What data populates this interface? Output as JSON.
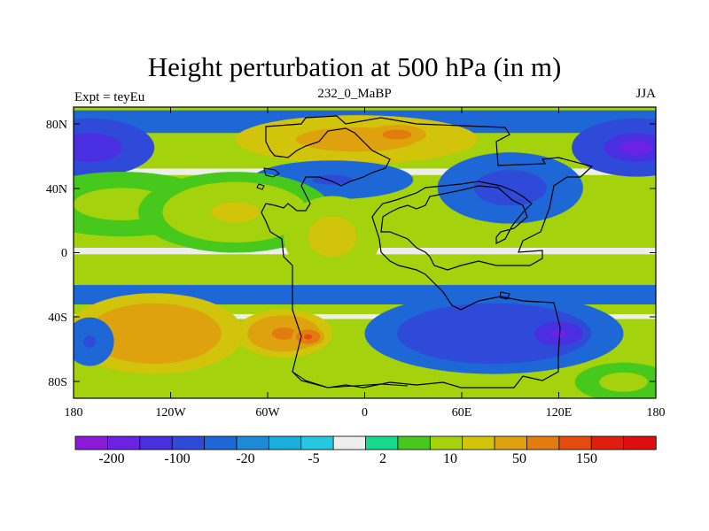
{
  "plot": {
    "title": "Height perturbation at 500 hPa (in m)",
    "left_string": "Expt = teyEu",
    "center_string": "232_0_MaBP",
    "right_string": "JJA"
  },
  "axes": {
    "lon_ticks": [
      "180",
      "120W",
      "60W",
      "0",
      "60E",
      "120E",
      "180"
    ],
    "lat_ticks": [
      "80N",
      "40N",
      "0",
      "40S",
      "80S"
    ]
  },
  "colorbar": {
    "colors": [
      "#8b1ad8",
      "#6b22e4",
      "#4a2fe0",
      "#2f4ad8",
      "#1e67d6",
      "#1d8ad8",
      "#1aaedb",
      "#25c8e0",
      "#eeeeee",
      "#16d98a",
      "#47c81c",
      "#a4d20c",
      "#d2c40a",
      "#dea20e",
      "#e27c0f",
      "#e34c0e",
      "#e01e0e",
      "#de0e10"
    ],
    "labels": [
      "-200",
      "-100",
      "-20",
      "-5",
      "2",
      "10",
      "50",
      "150"
    ]
  },
  "chart_data": {
    "type": "heatmap",
    "title": "Height perturbation at 500 hPa (in m)",
    "variable": "Height perturbation at 500 hPa",
    "units": "m",
    "experiment": "teyEu",
    "time": "232_0_MaBP",
    "season": "JJA",
    "xlabel": "",
    "ylabel": "",
    "xlim": [
      -180,
      180
    ],
    "ylim": [
      -90,
      90
    ],
    "x_ticks": [
      -180,
      -120,
      -60,
      0,
      60,
      120,
      180
    ],
    "y_ticks": [
      80,
      40,
      0,
      -40,
      -80
    ],
    "contour_levels": [
      -200,
      -150,
      -100,
      -50,
      -20,
      -10,
      -5,
      -2,
      2,
      5,
      10,
      20,
      50,
      100,
      150,
      200
    ],
    "features": [
      {
        "lon": -170,
        "lat": 65,
        "value": -150,
        "rx": 40,
        "ry": 18
      },
      {
        "lon": 168,
        "lat": 65,
        "value": -160,
        "rx": 40,
        "ry": 18
      },
      {
        "lon": -5,
        "lat": 70,
        "value": 70,
        "rx": 75,
        "ry": 15
      },
      {
        "lon": 20,
        "lat": 73,
        "value": 130,
        "rx": 18,
        "ry": 6
      },
      {
        "lon": -20,
        "lat": 45,
        "value": -60,
        "rx": 50,
        "ry": 12
      },
      {
        "lon": 90,
        "lat": 40,
        "value": -70,
        "rx": 45,
        "ry": 22
      },
      {
        "lon": -150,
        "lat": 30,
        "value": 15,
        "rx": 60,
        "ry": 20
      },
      {
        "lon": -80,
        "lat": 25,
        "value": 20,
        "rx": 60,
        "ry": 25
      },
      {
        "lon": -20,
        "lat": 10,
        "value": 25,
        "rx": 30,
        "ry": 25
      },
      {
        "lon": -130,
        "lat": -50,
        "value": 80,
        "rx": 55,
        "ry": 25
      },
      {
        "lon": -50,
        "lat": -50,
        "value": 100,
        "rx": 30,
        "ry": 15
      },
      {
        "lon": -35,
        "lat": -52,
        "value": 160,
        "rx": 10,
        "ry": 6
      },
      {
        "lon": 80,
        "lat": -50,
        "value": -100,
        "rx": 80,
        "ry": 25
      },
      {
        "lon": 120,
        "lat": -50,
        "value": -180,
        "rx": 20,
        "ry": 10
      },
      {
        "lon": -170,
        "lat": -55,
        "value": -60,
        "rx": 15,
        "ry": 15
      },
      {
        "lon": 160,
        "lat": -80,
        "value": 15,
        "rx": 30,
        "ry": 12
      }
    ],
    "colorbar_labels": [
      "-200",
      "-100",
      "-20",
      "-5",
      "2",
      "10",
      "50",
      "150"
    ]
  }
}
